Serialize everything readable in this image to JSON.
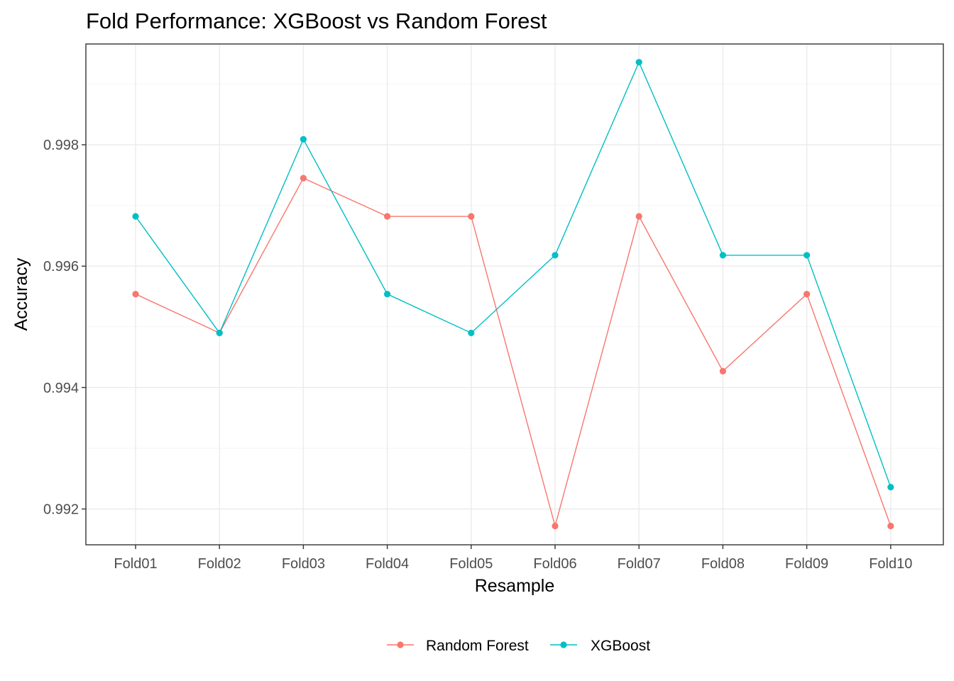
{
  "chart_data": {
    "type": "line",
    "title": "Fold Performance: XGBoost vs Random Forest",
    "xlabel": "Resample",
    "ylabel": "Accuracy",
    "categories": [
      "Fold01",
      "Fold02",
      "Fold03",
      "Fold04",
      "Fold05",
      "Fold06",
      "Fold07",
      "Fold08",
      "Fold09",
      "Fold10"
    ],
    "ylim": [
      0.99141,
      0.99966
    ],
    "yticks": [
      0.992,
      0.994,
      0.996,
      0.998
    ],
    "ytick_labels": [
      "0.992",
      "0.994",
      "0.996",
      "0.998"
    ],
    "grid": true,
    "legend_position": "bottom",
    "series": [
      {
        "name": "Random Forest",
        "color": "#F8766D",
        "values": [
          0.99554,
          0.9949,
          0.99745,
          0.99682,
          0.99682,
          0.99172,
          0.99682,
          0.99427,
          0.99554,
          0.99172
        ]
      },
      {
        "name": "XGBoost",
        "color": "#00BFC4",
        "values": [
          0.99682,
          0.9949,
          0.99809,
          0.99554,
          0.9949,
          0.99618,
          0.99936,
          0.99618,
          0.99618,
          0.99236
        ]
      }
    ]
  }
}
